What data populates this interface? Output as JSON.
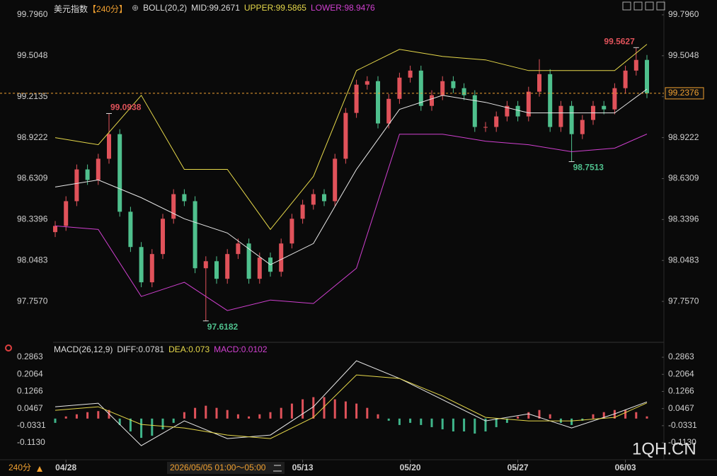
{
  "chart_data": [
    {
      "type": "candlestick",
      "title": "美元指数",
      "period": "【240分】",
      "indicator": "BOLL(20,2)",
      "ylim": [
        97.486,
        99.851
      ],
      "yticks": [
        {
          "value": 99.796,
          "label": "99.7960"
        },
        99.5048,
        99.2135,
        98.9222,
        98.6309,
        98.3396,
        98.0483,
        {
          "value": 97.757,
          "label": "97.7570"
        }
      ],
      "up_color": "#e0525a",
      "down_color": "#4fc08d",
      "ohlc": [
        [
          98.25,
          98.329,
          98.215,
          98.294
        ],
        [
          98.294,
          98.505,
          98.259,
          98.47
        ],
        [
          98.47,
          98.731,
          98.435,
          98.696
        ],
        [
          98.696,
          98.731,
          98.586,
          98.621
        ],
        [
          98.621,
          98.807,
          98.586,
          98.772
        ],
        [
          98.772,
          99.0938,
          98.737,
          98.947
        ],
        [
          98.947,
          98.982,
          98.36,
          98.395
        ],
        [
          98.395,
          98.43,
          98.109,
          98.144
        ],
        [
          98.144,
          98.179,
          97.858,
          97.893
        ],
        [
          97.893,
          98.129,
          97.858,
          98.094
        ],
        [
          98.094,
          98.38,
          98.059,
          98.345
        ],
        [
          98.345,
          98.555,
          98.31,
          98.52
        ],
        [
          98.52,
          98.555,
          98.435,
          98.47
        ],
        [
          98.47,
          98.505,
          97.958,
          97.993
        ],
        [
          97.993,
          98.078,
          97.6182,
          98.043
        ],
        [
          98.043,
          98.078,
          97.883,
          97.918
        ],
        [
          97.918,
          98.129,
          97.883,
          98.094
        ],
        [
          98.094,
          98.204,
          98.059,
          98.169
        ],
        [
          98.169,
          98.204,
          97.883,
          97.918
        ],
        [
          97.918,
          98.104,
          97.883,
          98.069
        ],
        [
          98.069,
          98.104,
          97.933,
          97.968
        ],
        [
          97.968,
          98.204,
          97.933,
          98.169
        ],
        [
          98.169,
          98.38,
          98.134,
          98.345
        ],
        [
          98.345,
          98.48,
          98.31,
          98.445
        ],
        [
          98.445,
          98.555,
          98.41,
          98.52
        ],
        [
          98.52,
          98.555,
          98.435,
          98.47
        ],
        [
          98.47,
          98.807,
          98.435,
          98.772
        ],
        [
          98.772,
          99.133,
          98.737,
          99.098
        ],
        [
          99.098,
          99.334,
          99.063,
          99.299
        ],
        [
          99.299,
          99.359,
          99.264,
          99.324
        ],
        [
          99.324,
          99.359,
          98.988,
          99.023
        ],
        [
          99.023,
          99.233,
          98.988,
          99.198
        ],
        [
          99.198,
          99.384,
          99.163,
          99.349
        ],
        [
          99.349,
          99.434,
          99.314,
          99.399
        ],
        [
          99.399,
          99.434,
          99.113,
          99.148
        ],
        [
          99.148,
          99.259,
          99.113,
          99.224
        ],
        [
          99.224,
          99.359,
          99.189,
          99.324
        ],
        [
          99.324,
          99.359,
          99.239,
          99.274
        ],
        [
          99.274,
          99.309,
          99.189,
          99.224
        ],
        [
          99.224,
          99.259,
          98.963,
          98.998
        ],
        [
          98.998,
          99.033,
          98.963,
          98.998
        ],
        [
          98.998,
          99.108,
          98.963,
          99.073
        ],
        [
          99.073,
          99.183,
          99.038,
          99.148
        ],
        [
          99.148,
          99.183,
          99.038,
          99.073
        ],
        [
          99.073,
          99.284,
          99.038,
          99.249
        ],
        [
          99.249,
          99.48,
          99.214,
          99.374
        ],
        [
          99.374,
          99.409,
          98.963,
          98.998
        ],
        [
          98.998,
          99.183,
          98.963,
          99.148
        ],
        [
          99.148,
          99.183,
          98.7513,
          98.947
        ],
        [
          98.947,
          99.083,
          98.912,
          99.048
        ],
        [
          99.048,
          99.183,
          99.013,
          99.148
        ],
        [
          99.148,
          99.183,
          99.088,
          99.123
        ],
        [
          99.123,
          99.309,
          99.088,
          99.274
        ],
        [
          99.274,
          99.434,
          99.239,
          99.399
        ],
        [
          99.399,
          99.5627,
          99.364,
          99.475
        ],
        [
          99.475,
          99.51,
          99.203,
          99.2376
        ]
      ],
      "series": [
        {
          "name": "MID:",
          "color": "#e8e8e8",
          "x": [
            0,
            4,
            8,
            12,
            16,
            20,
            24,
            28,
            32,
            36,
            40,
            44,
            48,
            52,
            55
          ],
          "values": [
            98.571,
            98.621,
            98.495,
            98.345,
            98.244,
            98.018,
            98.169,
            98.696,
            99.123,
            99.223,
            99.173,
            99.098,
            99.098,
            99.098,
            99.2671
          ]
        },
        {
          "name": "UPPER:",
          "color": "#e6d84a",
          "x": [
            0,
            4,
            8,
            12,
            16,
            20,
            24,
            28,
            32,
            36,
            40,
            44,
            48,
            52,
            55
          ],
          "values": [
            98.922,
            98.872,
            99.223,
            98.696,
            98.696,
            98.269,
            98.646,
            99.399,
            99.55,
            99.5,
            99.475,
            99.399,
            99.399,
            99.399,
            99.5865
          ]
        },
        {
          "name": "LOWER:",
          "color": "#d040d0",
          "x": [
            0,
            4,
            8,
            12,
            16,
            20,
            24,
            28,
            32,
            36,
            40,
            44,
            48,
            52,
            55
          ],
          "values": [
            98.294,
            98.269,
            97.792,
            97.893,
            97.692,
            97.767,
            97.742,
            97.993,
            98.947,
            98.947,
            98.897,
            98.872,
            98.822,
            98.847,
            98.9476
          ]
        }
      ]
    },
    {
      "type": "macd",
      "title": "MACD(26,12,9)",
      "ylim": [
        -0.192,
        0.336
      ],
      "yticks": [
        0.2863,
        0.2064,
        0.1266,
        0.0467,
        -0.0331,
        {
          "value": -0.113,
          "label": "-0.1130"
        }
      ],
      "series": [
        {
          "name": "DIFF:",
          "color": "#e8e8e8",
          "x": [
            0,
            4,
            8,
            12,
            16,
            20,
            24,
            28,
            32,
            36,
            40,
            44,
            48,
            52,
            55
          ],
          "values": [
            0.0553,
            0.0718,
            -0.1262,
            -0.0107,
            -0.0932,
            -0.0767,
            0.0553,
            0.2698,
            0.1873,
            0.0883,
            -0.0107,
            0.0223,
            -0.0437,
            0.0223,
            0.0781
          ]
        },
        {
          "name": "DEA:",
          "color": "#e6d84a",
          "x": [
            0,
            4,
            8,
            12,
            16,
            20,
            24,
            28,
            32,
            36,
            40,
            44,
            48,
            52,
            55
          ],
          "values": [
            0.0388,
            0.0553,
            -0.0272,
            -0.0437,
            -0.0767,
            -0.0932,
            0.0058,
            0.2038,
            0.1873,
            0.1048,
            0.0058,
            -0.0107,
            -0.0107,
            0.0058,
            0.073
          ]
        }
      ],
      "histogram": {
        "name": "MACD:",
        "color": "#d040d0",
        "up_color": "#e0525a",
        "down_color": "#3fb58a",
        "values": [
          -0.02,
          0.01,
          0.02,
          0.03,
          0.035,
          0.04,
          -0.03,
          -0.06,
          -0.09,
          -0.08,
          -0.05,
          -0.02,
          0.03,
          0.05,
          0.06,
          0.05,
          0.04,
          0.02,
          0.01,
          0.02,
          0.03,
          0.05,
          0.07,
          0.09,
          0.1,
          0.1,
          0.09,
          0.08,
          0.07,
          0.05,
          0.02,
          -0.01,
          -0.03,
          -0.02,
          -0.03,
          -0.04,
          -0.05,
          -0.06,
          -0.06,
          -0.07,
          -0.06,
          -0.04,
          -0.02,
          0.01,
          0.03,
          0.04,
          0.02,
          -0.02,
          -0.03,
          -0.01,
          0.02,
          0.03,
          0.04,
          0.04,
          0.03,
          0.0102
        ]
      },
      "xticks": [
        {
          "value": 1,
          "label": "04/28"
        },
        {
          "value": 23,
          "label": "05/13"
        },
        {
          "value": 33,
          "label": "05/20"
        },
        {
          "value": 43,
          "label": "05/27"
        },
        {
          "value": 53,
          "label": "06/03"
        }
      ]
    }
  ],
  "footer": {
    "period": "240分",
    "cursor_time": "2026/05/05 01:00～05:00",
    "watermark": "1QH.CN"
  }
}
